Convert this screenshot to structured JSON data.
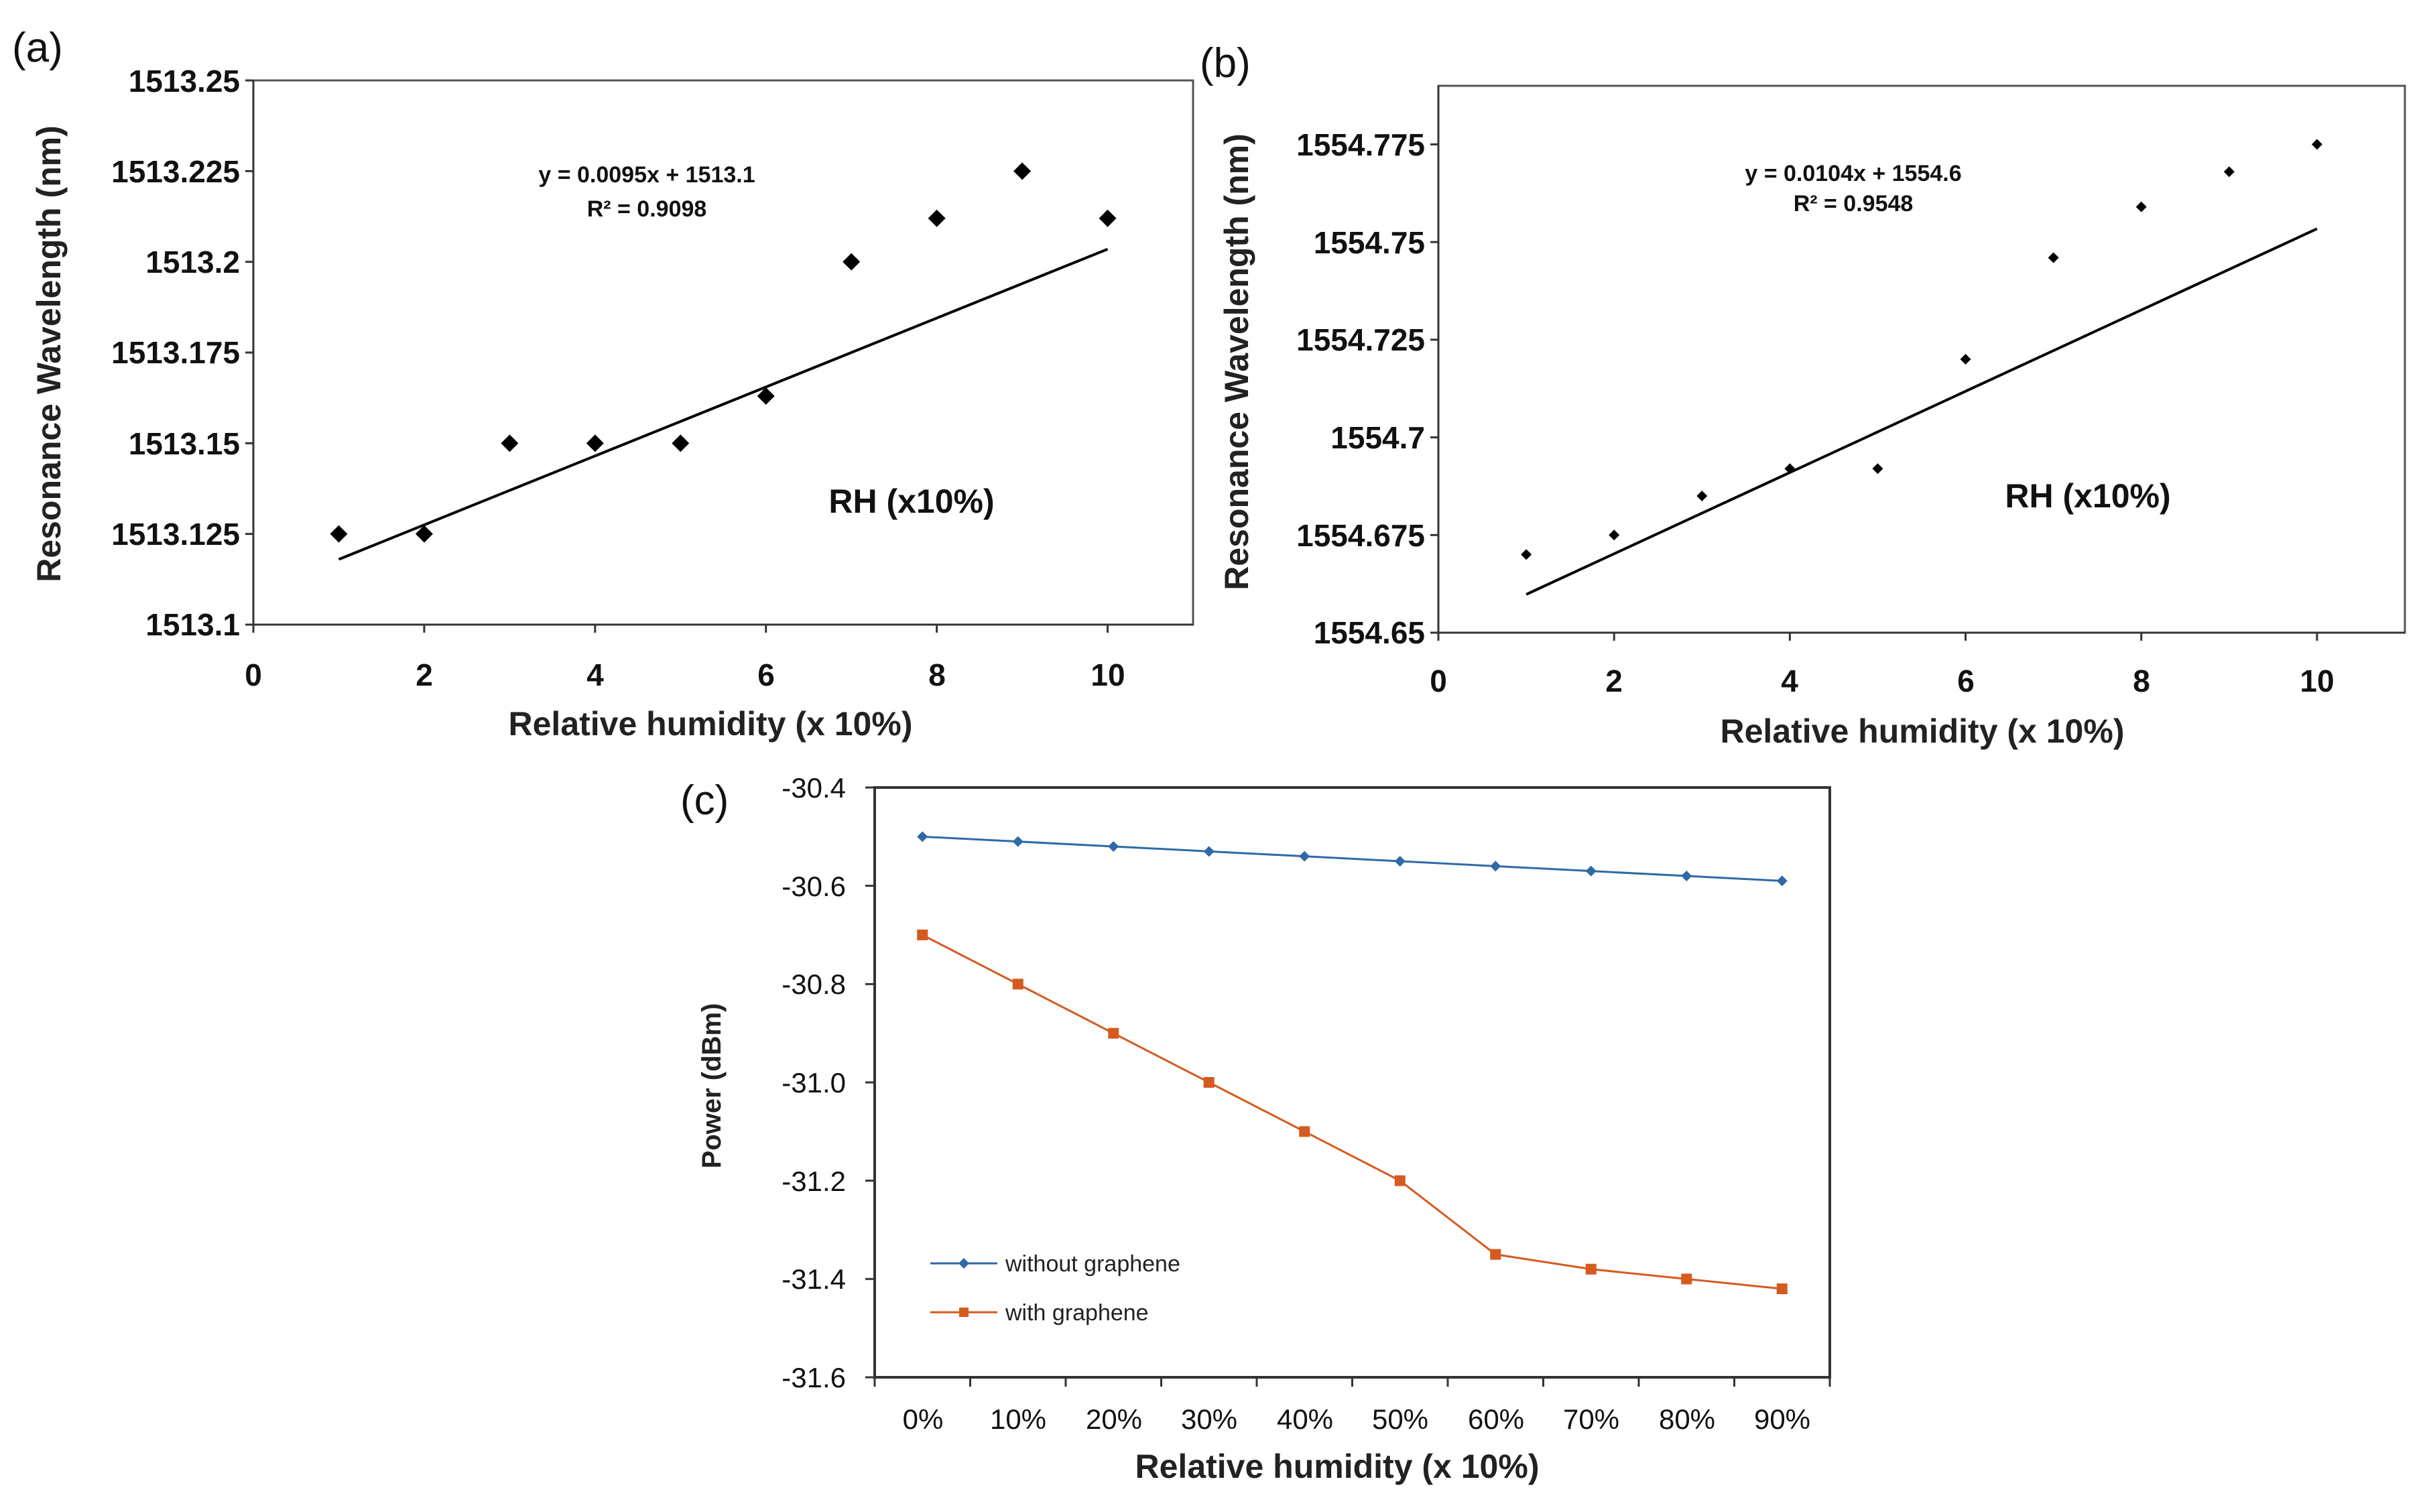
{
  "chart_data": [
    {
      "id": "a",
      "type": "scatter",
      "panel_label": "(a)",
      "xlabel": "Relative humidity (x 10%)",
      "ylabel": "Resonance Wavelength (nm)",
      "xlim": [
        0,
        11
      ],
      "ylim": [
        1513.1,
        1513.25
      ],
      "xticks": [
        "0",
        "2",
        "4",
        "6",
        "8",
        "10"
      ],
      "yticks": [
        "1513.1",
        "1513.125",
        "1513.15",
        "1513.175",
        "1513.2",
        "1513.225",
        "1513.25"
      ],
      "x": [
        1,
        2,
        3,
        4,
        5,
        6,
        7,
        8,
        9,
        10
      ],
      "y": [
        1513.125,
        1513.125,
        1513.15,
        1513.15,
        1513.15,
        1513.163,
        1513.2,
        1513.212,
        1513.225,
        1513.212
      ],
      "trendline": {
        "slope": 0.0095,
        "intercept": 1513.1085,
        "x_range": [
          1,
          10
        ]
      },
      "equation": "y = 0.0095x + 1513.1",
      "r_squared": "R² = 0.9098",
      "annotation": "RH (x10%)",
      "marker": "diamond",
      "color": "#000000"
    },
    {
      "id": "b",
      "type": "scatter",
      "panel_label": "(b)",
      "xlabel": "Relative humidity (x 10%)",
      "ylabel": "Resonance Wavelength (nm)",
      "xlim": [
        0,
        11
      ],
      "ylim": [
        1554.65,
        1554.79
      ],
      "xticks": [
        "0",
        "2",
        "4",
        "6",
        "8",
        "10"
      ],
      "yticks": [
        "1554.65",
        "1554.675",
        "1554.7",
        "1554.725",
        "1554.75",
        "1554.775"
      ],
      "x": [
        1,
        2,
        3,
        4,
        5,
        6,
        7,
        8,
        9,
        10
      ],
      "y": [
        1554.67,
        1554.675,
        1554.685,
        1554.692,
        1554.692,
        1554.72,
        1554.746,
        1554.759,
        1554.768,
        1554.775
      ],
      "trendline": {
        "slope": 0.0104,
        "intercept": 1554.6494,
        "x_range": [
          1,
          10
        ]
      },
      "equation": "y = 0.0104x + 1554.6",
      "r_squared": "R² = 0.9548",
      "annotation": "RH (x10%)",
      "marker": "small-diamond",
      "color": "#000000"
    },
    {
      "id": "c",
      "type": "line",
      "panel_label": "(c)",
      "xlabel": "Relative humidity (x 10%)",
      "ylabel": "Power (dBm)",
      "categories": [
        "0%",
        "10%",
        "20%",
        "30%",
        "40%",
        "50%",
        "60%",
        "70%",
        "80%",
        "90%"
      ],
      "ylim": [
        -31.6,
        -30.4
      ],
      "yticks": [
        "-30.4",
        "-30.6",
        "-30.8",
        "-31.0",
        "-31.2",
        "-31.4",
        "-31.6"
      ],
      "series": [
        {
          "name": "without graphene",
          "color": "#2e6aa6",
          "marker": "diamond",
          "values": [
            -30.5,
            -30.51,
            -30.52,
            -30.53,
            -30.54,
            -30.55,
            -30.56,
            -30.57,
            -30.58,
            -30.59
          ]
        },
        {
          "name": "with graphene",
          "color": "#d55a1f",
          "marker": "square",
          "values": [
            -30.7,
            -30.8,
            -30.9,
            -31.0,
            -31.1,
            -31.2,
            -31.35,
            -31.38,
            -31.4,
            -31.42
          ]
        }
      ],
      "legend_position": "bottom-left"
    }
  ]
}
